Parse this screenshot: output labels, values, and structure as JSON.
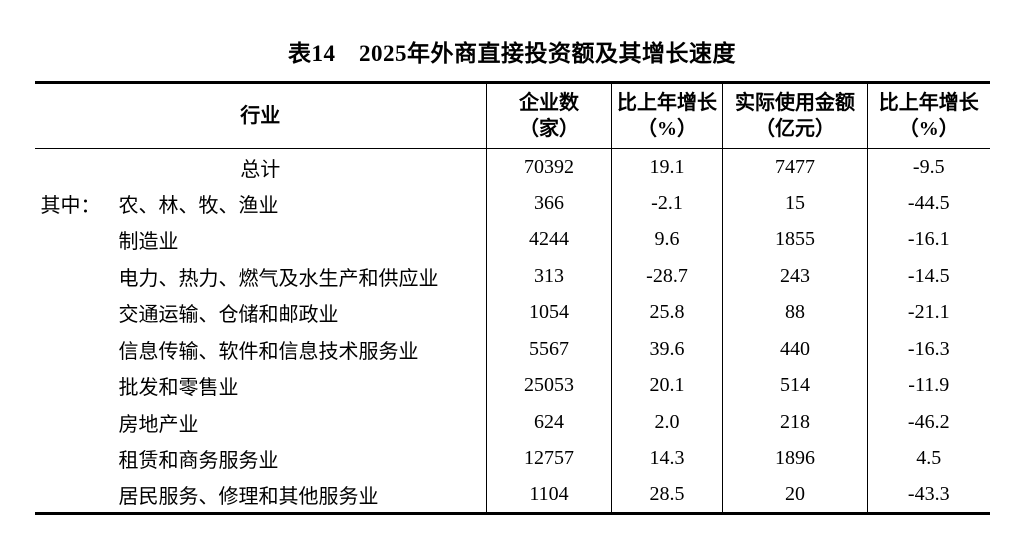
{
  "title": "表14　2025年外商直接投资额及其增长速度",
  "table": {
    "headers": [
      {
        "line1": "行业",
        "line2": ""
      },
      {
        "line1": "企业数",
        "line2": "（家）"
      },
      {
        "line1": "比上年增长",
        "line2": "（%）"
      },
      {
        "line1": "实际使用金额",
        "line2": "（亿元）"
      },
      {
        "line1": "比上年增长",
        "line2": "（%）"
      }
    ],
    "rows": [
      {
        "prefix": "",
        "industry": "总计",
        "align": "center",
        "values": [
          "70392",
          "19.1",
          "7477",
          "-9.5"
        ]
      },
      {
        "prefix": "其中：",
        "industry": "农、林、牧、渔业",
        "align": "left",
        "values": [
          "366",
          "-2.1",
          "15",
          "-44.5"
        ]
      },
      {
        "prefix": "",
        "industry": "制造业",
        "align": "indent",
        "values": [
          "4244",
          "9.6",
          "1855",
          "-16.1"
        ]
      },
      {
        "prefix": "",
        "industry": "电力、热力、燃气及水生产和供应业",
        "align": "indent",
        "values": [
          "313",
          "-28.7",
          "243",
          "-14.5"
        ]
      },
      {
        "prefix": "",
        "industry": "交通运输、仓储和邮政业",
        "align": "indent",
        "values": [
          "1054",
          "25.8",
          "88",
          "-21.1"
        ]
      },
      {
        "prefix": "",
        "industry": "信息传输、软件和信息技术服务业",
        "align": "indent",
        "values": [
          "5567",
          "39.6",
          "440",
          "-16.3"
        ]
      },
      {
        "prefix": "",
        "industry": "批发和零售业",
        "align": "indent",
        "values": [
          "25053",
          "20.1",
          "514",
          "-11.9"
        ]
      },
      {
        "prefix": "",
        "industry": "房地产业",
        "align": "indent",
        "values": [
          "624",
          "2.0",
          "218",
          "-46.2"
        ]
      },
      {
        "prefix": "",
        "industry": "租赁和商务服务业",
        "align": "indent",
        "values": [
          "12757",
          "14.3",
          "1896",
          "4.5"
        ]
      },
      {
        "prefix": "",
        "industry": "居民服务、修理和其他服务业",
        "align": "indent",
        "values": [
          "1104",
          "28.5",
          "20",
          "-43.3"
        ]
      }
    ]
  }
}
